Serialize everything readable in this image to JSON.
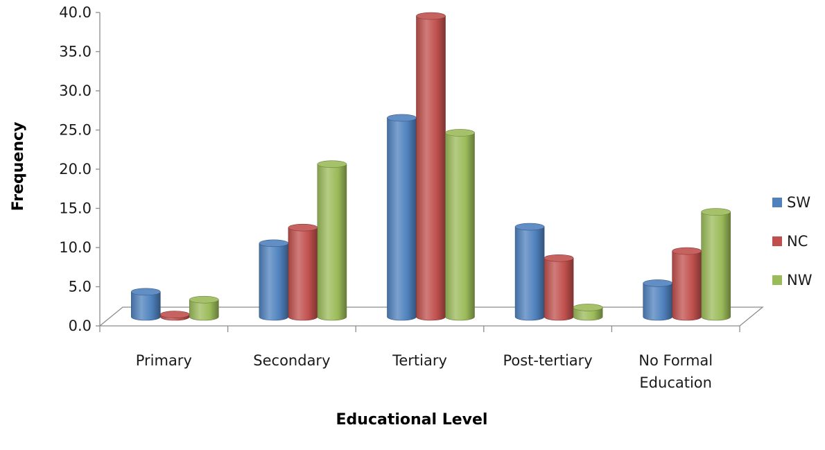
{
  "chart_data": {
    "type": "bar",
    "title": "",
    "xlabel": "Educational Level",
    "ylabel": "Frequency",
    "categories": [
      "Primary",
      "Secondary",
      "Tertiary",
      "Post-tertiary",
      "No Formal Education"
    ],
    "series": [
      {
        "name": "SW",
        "color": "#4F81BD",
        "values": [
          3.2,
          9.4,
          25.4,
          11.5,
          4.3
        ]
      },
      {
        "name": "NC",
        "color": "#C0504D",
        "values": [
          0.3,
          11.4,
          38.4,
          7.5,
          8.4
        ]
      },
      {
        "name": "NW",
        "color": "#9BBB59",
        "values": [
          2.2,
          19.5,
          23.5,
          1.2,
          13.4
        ]
      }
    ],
    "ylim": [
      0,
      40
    ],
    "yticks": [
      "0.0",
      "5.0",
      "10.0",
      "15.0",
      "20.0",
      "25.0",
      "30.0",
      "35.0",
      "40.0"
    ],
    "grid": false,
    "legend": "right",
    "style": "3d-cylinder"
  }
}
